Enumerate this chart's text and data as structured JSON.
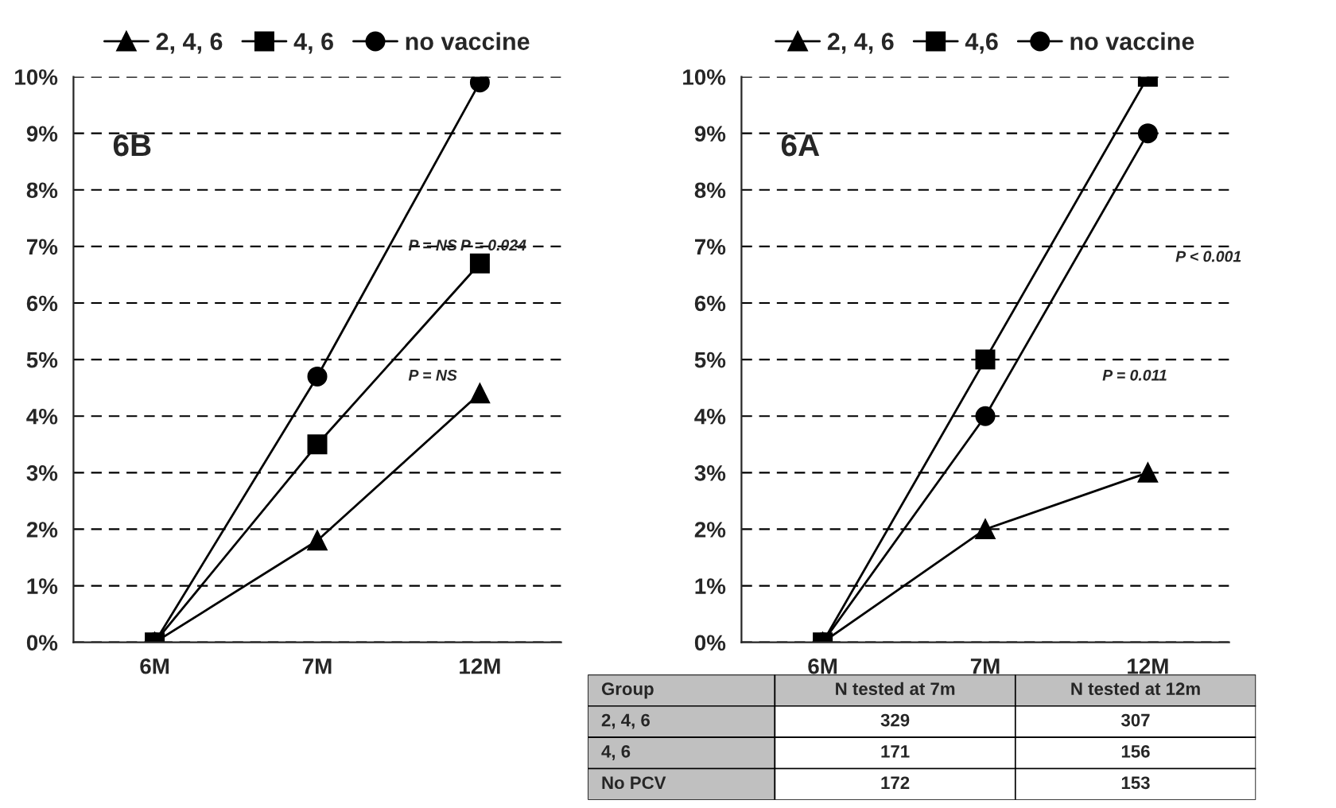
{
  "chart_data": [
    {
      "type": "line",
      "title": "6B",
      "categories": [
        "6M",
        "7M",
        "12M"
      ],
      "series": [
        {
          "name": "2, 4, 6",
          "color": "#000000",
          "marker": "triangle",
          "values": [
            0,
            1.8,
            4.4
          ]
        },
        {
          "name": "4, 6",
          "color": "#000000",
          "marker": "square",
          "values": [
            0,
            3.5,
            6.7
          ]
        },
        {
          "name": "no vaccine",
          "color": "#000000",
          "marker": "circle",
          "values": [
            0,
            4.7,
            9.9
          ]
        }
      ],
      "ylim": [
        0,
        10
      ],
      "yticks": [
        {
          "value": 0,
          "label": "0%"
        },
        {
          "value": 1,
          "label": "1%"
        },
        {
          "value": 2,
          "label": "2%"
        },
        {
          "value": 3,
          "label": "3%"
        },
        {
          "value": 4,
          "label": "4%"
        },
        {
          "value": 5,
          "label": "5%"
        },
        {
          "value": 6,
          "label": "6%"
        },
        {
          "value": 7,
          "label": "7%"
        },
        {
          "value": 8,
          "label": "8%"
        },
        {
          "value": 9,
          "label": "9%"
        },
        {
          "value": 10,
          "label": "10%"
        }
      ],
      "grid": "y",
      "legend": "top",
      "line_style": "solid",
      "annotations": [
        "P = NS",
        "P = 0.024",
        "P = NS"
      ]
    },
    {
      "type": "line",
      "title": "6A",
      "categories": [
        "6M",
        "7M",
        "12M"
      ],
      "series": [
        {
          "name": "2, 4, 6",
          "color": "#000000",
          "marker": "triangle",
          "values": [
            0,
            2,
            3
          ]
        },
        {
          "name": "4,6",
          "color": "#000000",
          "marker": "square",
          "values": [
            0,
            5,
            10
          ]
        },
        {
          "name": "no vaccine",
          "color": "#000000",
          "marker": "circle",
          "values": [
            0,
            4,
            9
          ]
        }
      ],
      "ylim": [
        0,
        10
      ],
      "yticks": [
        {
          "value": 0,
          "label": "0%"
        },
        {
          "value": 1,
          "label": "1%"
        },
        {
          "value": 2,
          "label": "2%"
        },
        {
          "value": 3,
          "label": "3%"
        },
        {
          "value": 4,
          "label": "4%"
        },
        {
          "value": 5,
          "label": "5%"
        },
        {
          "value": 6,
          "label": "6%"
        },
        {
          "value": 7,
          "label": "7%"
        },
        {
          "value": 8,
          "label": "8%"
        },
        {
          "value": 9,
          "label": "9%"
        },
        {
          "value": 10,
          "label": "10%"
        }
      ],
      "grid": "y",
      "legend": "top",
      "line_style": "solid",
      "annotations": [
        "P < 0.001",
        "P = 0.011",
        "Group",
        "N tested at 7m",
        "N tested at 12m",
        "2, 4, 6",
        "329",
        "307",
        "4, 6",
        "171",
        "156",
        "No PCV",
        "172",
        "153"
      ]
    }
  ]
}
